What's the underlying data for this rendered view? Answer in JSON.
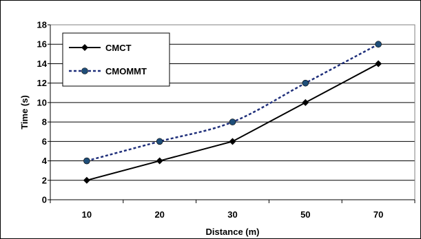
{
  "chart_data": {
    "type": "line",
    "categories": [
      "10",
      "20",
      "30",
      "50",
      "70"
    ],
    "series": [
      {
        "name": "CMCT",
        "values": [
          2,
          4,
          6,
          10,
          14
        ],
        "color": "#000000",
        "marker": "diamond",
        "line": "solid"
      },
      {
        "name": "CMOMMT",
        "values": [
          4,
          6,
          8,
          12,
          16
        ],
        "color": "#1f2f7a",
        "marker_color": "#1f4e79",
        "marker": "circle",
        "line": "dashed"
      }
    ],
    "xlabel": "Distance (m)",
    "ylabel": "Time (s)",
    "ylim": [
      0,
      18
    ],
    "yticks": [
      "0",
      "2",
      "4",
      "6",
      "8",
      "10",
      "12",
      "14",
      "16",
      "18"
    ],
    "grid": true,
    "legend": "top-left"
  }
}
